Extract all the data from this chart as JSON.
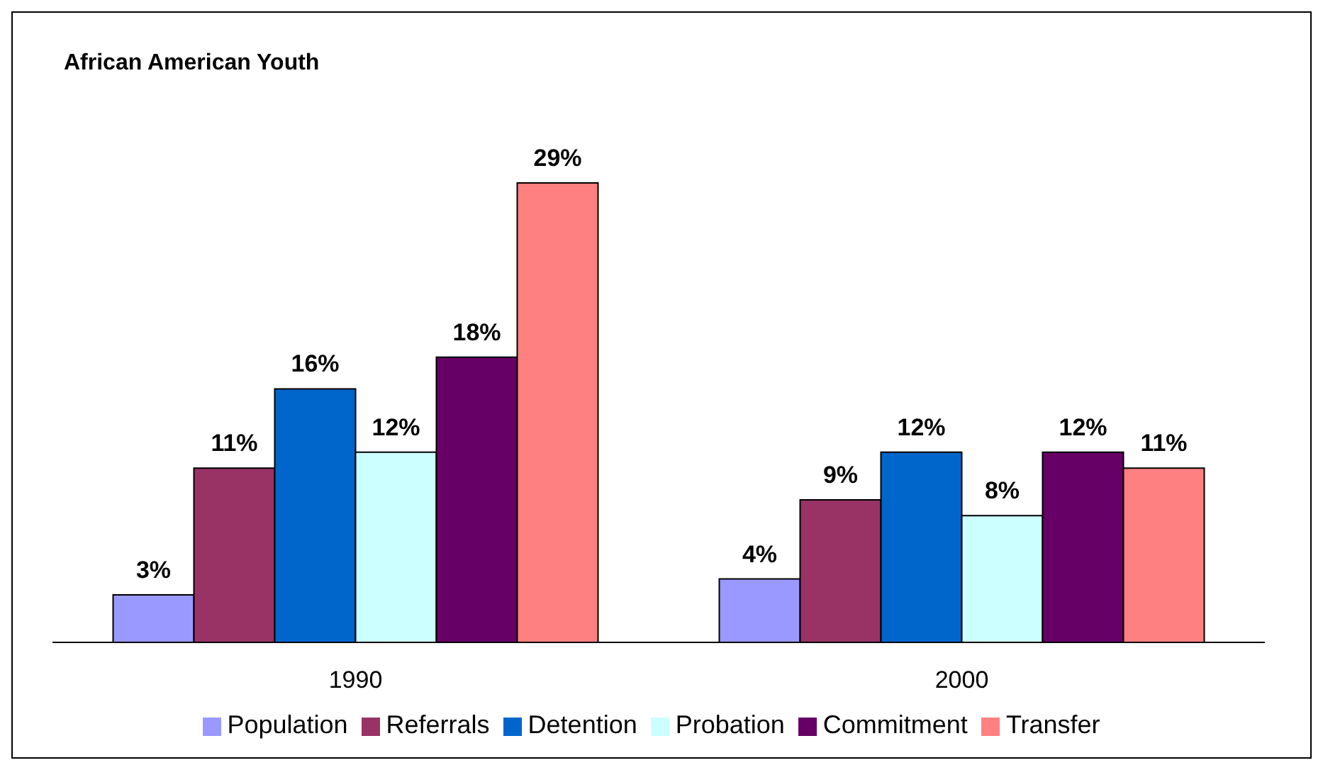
{
  "chart_data": {
    "type": "bar",
    "title": "African American Youth",
    "categories": [
      "1990",
      "2000"
    ],
    "series": [
      {
        "name": "Population",
        "color": "#9999ff",
        "values": [
          3,
          4
        ],
        "value_labels": [
          "3%",
          "4%"
        ]
      },
      {
        "name": "Referrals",
        "color": "#993366",
        "values": [
          11,
          9
        ],
        "value_labels": [
          "11%",
          "9%"
        ]
      },
      {
        "name": "Detention",
        "color": "#0066cc",
        "values": [
          16,
          12
        ],
        "value_labels": [
          "16%",
          "12%"
        ]
      },
      {
        "name": "Probation",
        "color": "#ccffff",
        "values": [
          12,
          8
        ],
        "value_labels": [
          "12%",
          "8%"
        ]
      },
      {
        "name": "Commitment",
        "color": "#660066",
        "values": [
          18,
          12
        ],
        "value_labels": [
          "18%",
          "12%"
        ]
      },
      {
        "name": "Transfer",
        "color": "#ff8080",
        "values": [
          29,
          11
        ],
        "value_labels": [
          "29%",
          "11%"
        ]
      }
    ],
    "legend": "bottom",
    "grid": false
  }
}
